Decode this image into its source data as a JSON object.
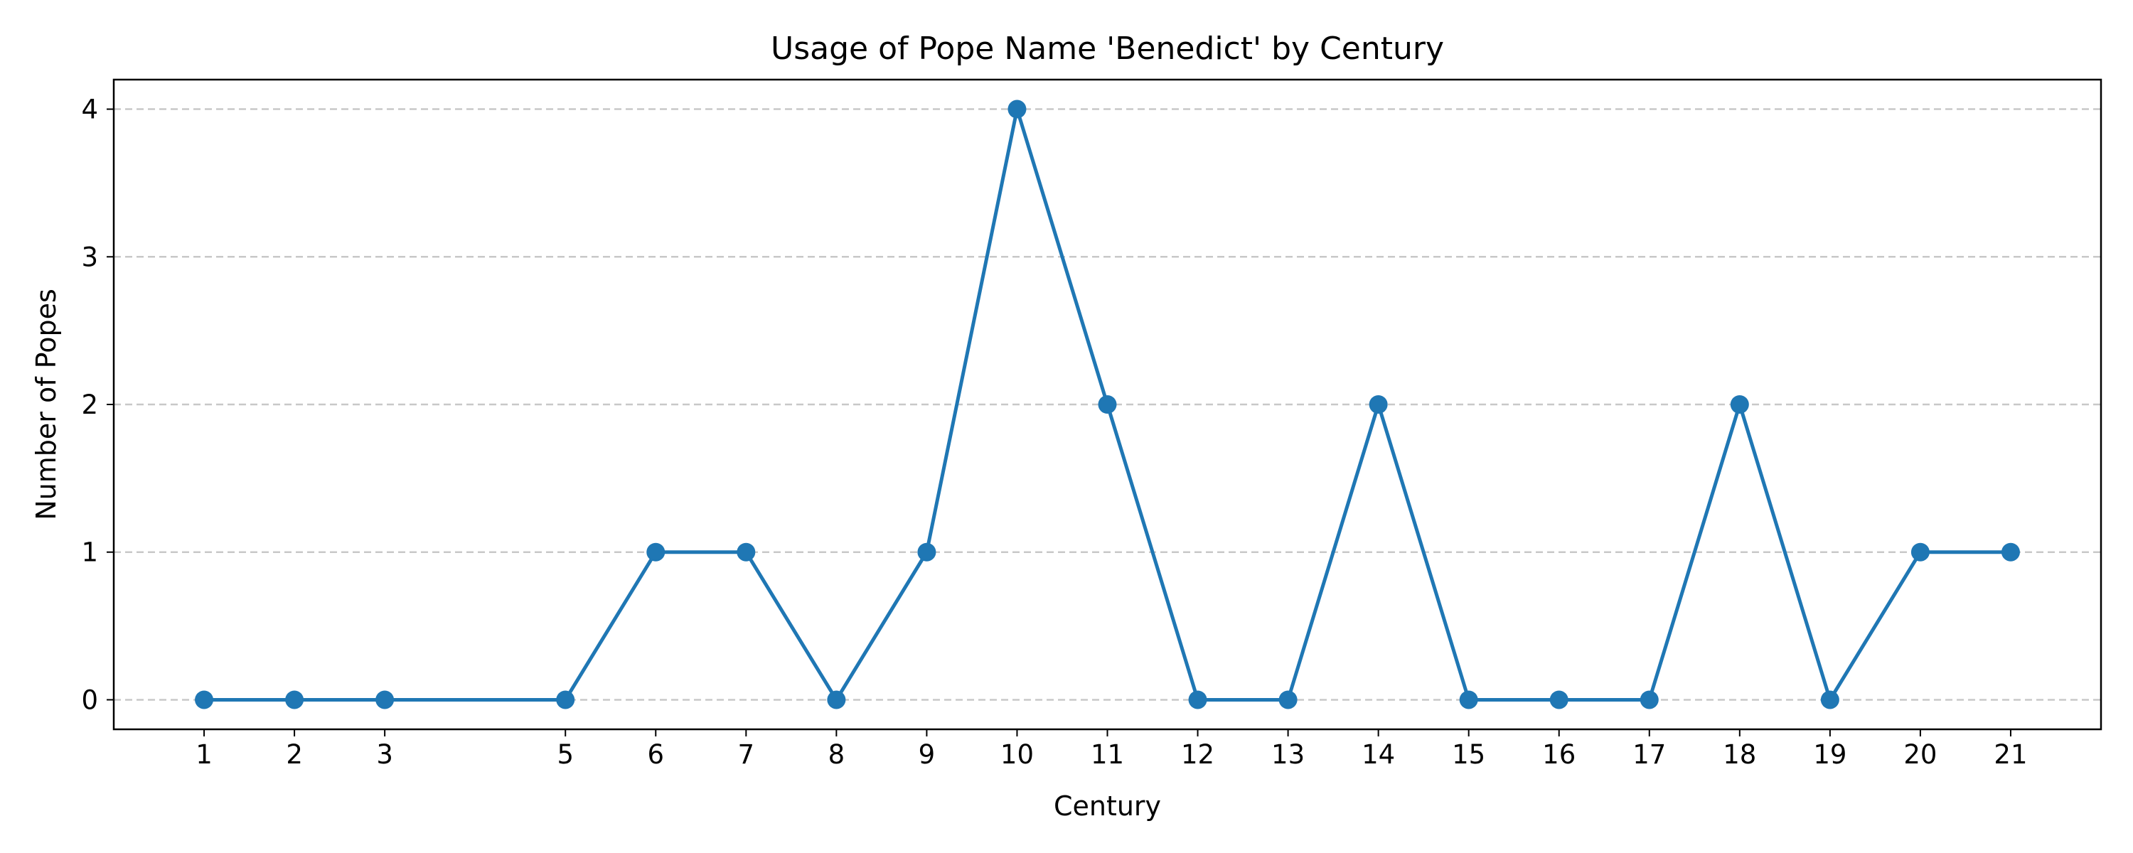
{
  "chart_data": {
    "type": "line",
    "title": "Usage of Pope Name 'Benedict' by Century",
    "xlabel": "Century",
    "ylabel": "Number of Popes",
    "x": [
      1,
      2,
      3,
      5,
      6,
      7,
      8,
      9,
      10,
      11,
      12,
      13,
      14,
      15,
      16,
      17,
      18,
      19,
      20,
      21
    ],
    "series": [
      {
        "values": [
          0,
          0,
          0,
          0,
          1,
          1,
          0,
          1,
          4,
          2,
          0,
          0,
          2,
          0,
          0,
          0,
          2,
          0,
          1,
          1
        ],
        "color": "#1f77b4",
        "marker": "circle"
      }
    ],
    "xticks": [
      "1",
      "2",
      "3",
      "5",
      "6",
      "7",
      "8",
      "9",
      "10",
      "11",
      "12",
      "13",
      "14",
      "15",
      "16",
      "17",
      "18",
      "19",
      "20",
      "21"
    ],
    "yticks": [
      "0",
      "1",
      "2",
      "3",
      "4"
    ],
    "xlim": [
      0,
      22
    ],
    "ylim": [
      -0.2,
      4.2
    ],
    "grid": "y-dashed",
    "legend": "none"
  }
}
